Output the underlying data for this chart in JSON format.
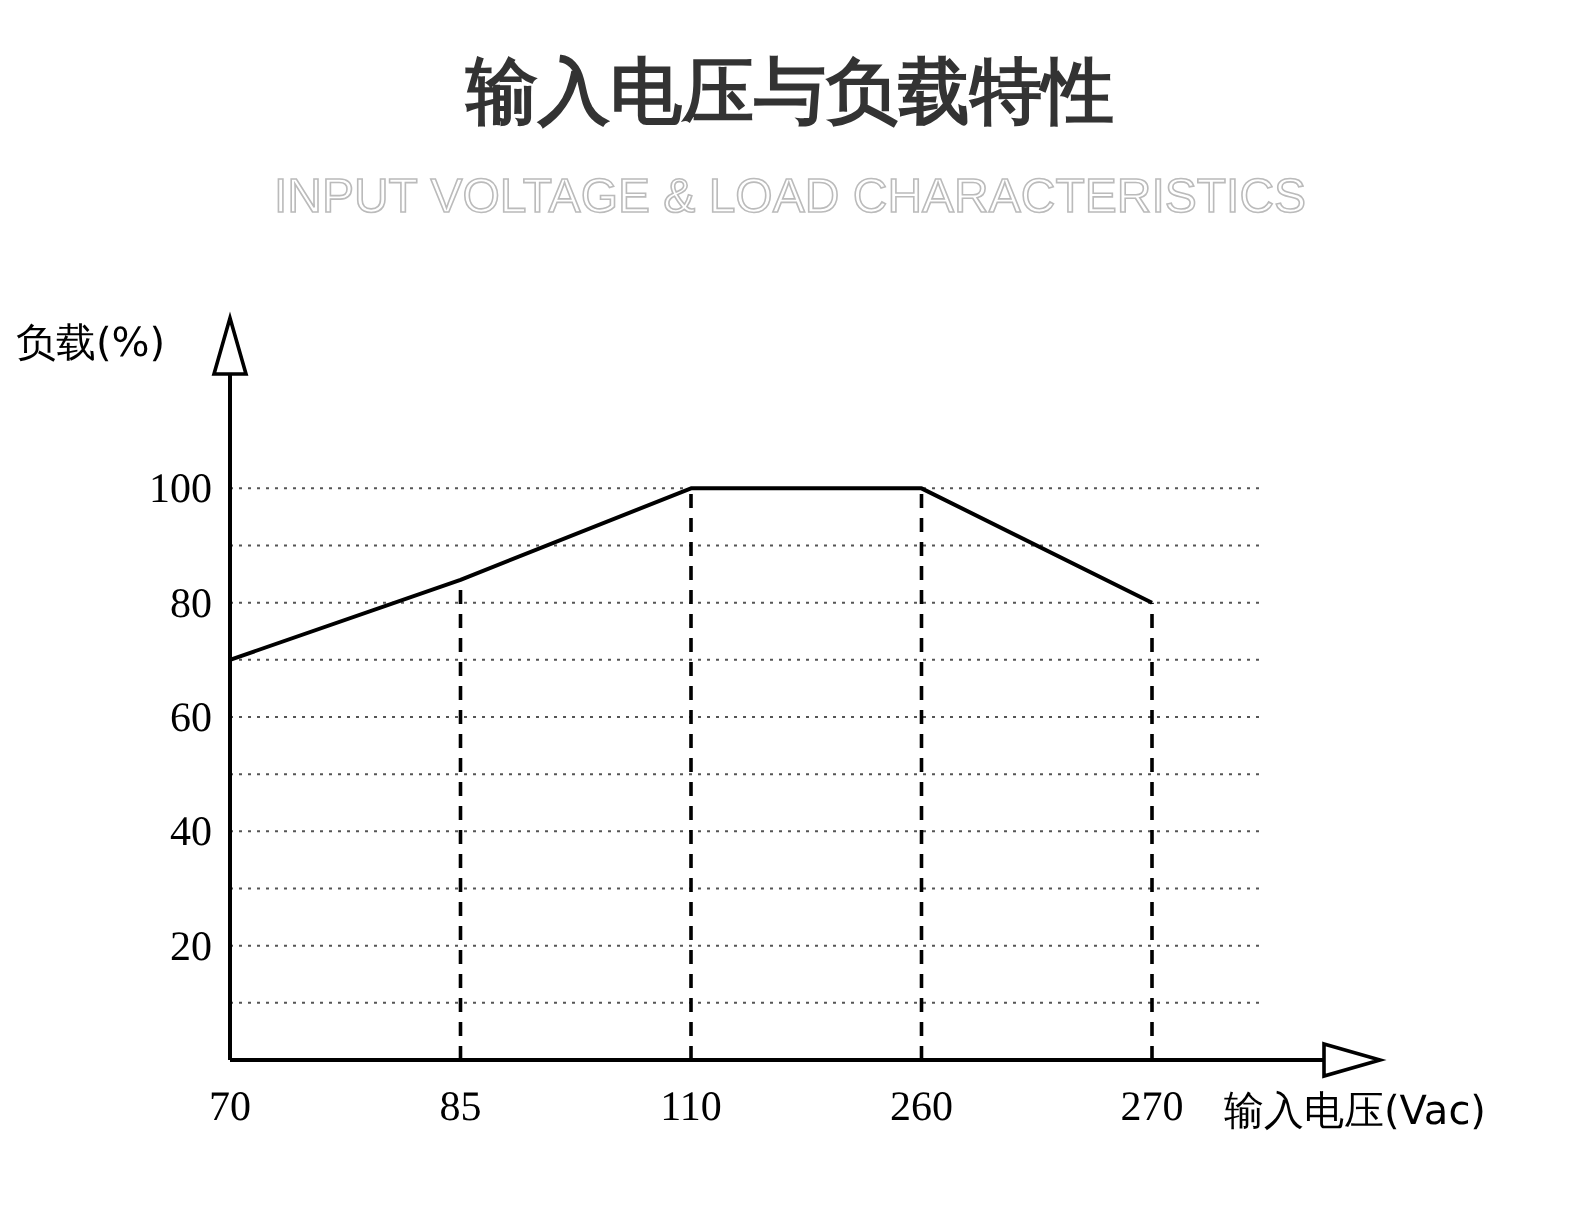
{
  "chart_data": {
    "type": "line",
    "title": "输入电压与负载特性",
    "subtitle": "INPUT VOLTAGE & LOAD CHARACTERISTICS",
    "xlabel": "输入电压(Vac)",
    "ylabel": "负载(%)",
    "categories": [
      "70",
      "85",
      "110",
      "260",
      "270"
    ],
    "series": [
      {
        "color": "#000000",
        "values": [
          70,
          84,
          100,
          100,
          80
        ]
      }
    ],
    "ylim": [
      0,
      120
    ],
    "yticks": [
      {
        "value": 10,
        "label": null
      },
      20,
      {
        "value": 30,
        "label": null
      },
      40,
      {
        "value": 50,
        "label": null
      },
      60,
      {
        "value": 70,
        "label": null
      },
      80,
      {
        "value": 90,
        "label": null
      },
      100
    ],
    "grid": "y",
    "line_style": "solid",
    "marker": "none",
    "ref_lines": [
      {
        "axis": "x",
        "value": "85",
        "line_style": "dashed",
        "color": "#000000"
      },
      {
        "axis": "x",
        "value": "110",
        "line_style": "dashed",
        "color": "#000000"
      },
      {
        "axis": "x",
        "value": "260",
        "line_style": "dashed",
        "color": "#000000"
      },
      {
        "axis": "x",
        "value": "270",
        "line_style": "dashed",
        "color": "#000000"
      }
    ]
  }
}
